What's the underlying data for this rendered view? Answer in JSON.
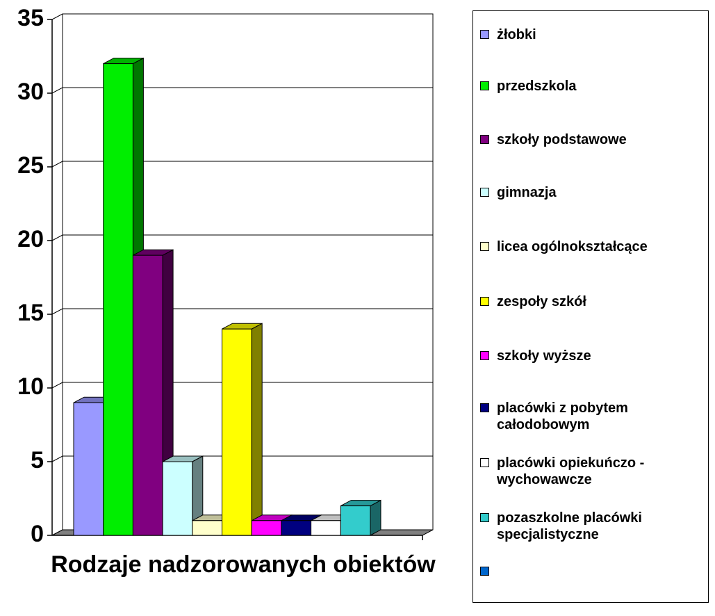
{
  "chart_data": {
    "type": "bar3d",
    "categories": [
      "Rodzaje nadzorowanych obiektów"
    ],
    "series": [
      {
        "name": "żłobki",
        "color": "#9999ff",
        "values": [
          9
        ]
      },
      {
        "name": "przedszkola",
        "color": "#00ee00",
        "values": [
          32
        ]
      },
      {
        "name": "szkoły podstawowe",
        "color": "#800080",
        "values": [
          19
        ]
      },
      {
        "name": "gimnazja",
        "color": "#ccffff",
        "values": [
          5
        ]
      },
      {
        "name": "licea ogólnokształcące",
        "color": "#ffffcc",
        "values": [
          1
        ]
      },
      {
        "name": "zespoły szkół",
        "color": "#ffff00",
        "values": [
          14
        ]
      },
      {
        "name": "szkoły wyższe",
        "color": "#ff00ff",
        "values": [
          1
        ]
      },
      {
        "name": "placówki z pobytem całodobowym",
        "color": "#000080",
        "values": [
          1
        ]
      },
      {
        "name": "placówki opiekuńczo - wychowawcze",
        "color": "#ffffff",
        "values": [
          1
        ]
      },
      {
        "name": "pozaszkolne placówki specjalistyczne",
        "color": "#33cccc",
        "values": [
          2
        ]
      },
      {
        "name": null,
        "color": "#0066cc",
        "values": [
          null
        ]
      }
    ],
    "ylim": [
      0,
      35
    ],
    "yticks": [
      0,
      5,
      10,
      15,
      20,
      25,
      30,
      35
    ],
    "grid": true,
    "legend": "right"
  }
}
